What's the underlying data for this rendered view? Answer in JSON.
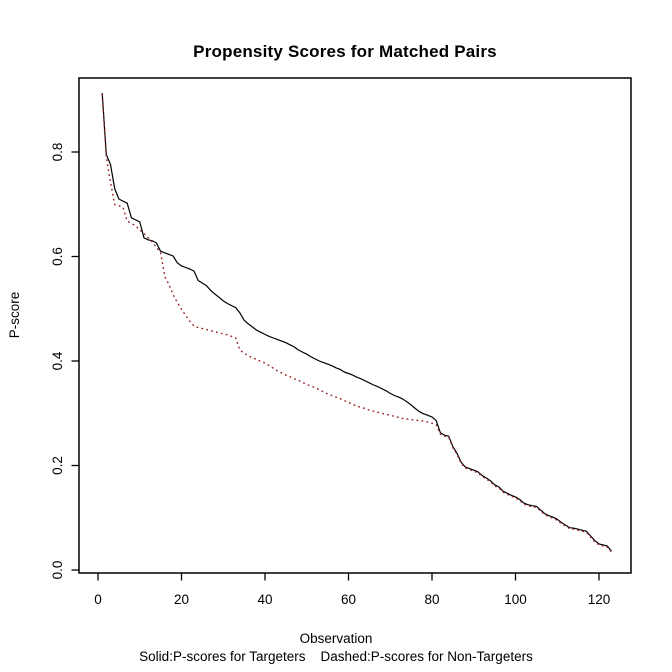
{
  "title": "Propensity Scores for Matched Pairs",
  "footnote": "Solid:P-scores for Targeters    Dashed:P-scores for Non-Targeters",
  "chart_data": {
    "type": "line",
    "title": "Propensity Scores for Matched Pairs",
    "xlabel": "Observation",
    "ylabel": "P-score",
    "legend_note": "Solid:P-scores for Targeters    Dashed:P-scores for Non-Targeters",
    "legend_position": "below",
    "grid": false,
    "xlim": [
      0,
      124
    ],
    "ylim": [
      0,
      0.92
    ],
    "x_ticks": [
      0,
      20,
      40,
      60,
      80,
      100,
      120
    ],
    "y_ticks": [
      0,
      0.2,
      0.4,
      0.6,
      0.8
    ],
    "y_tick_labels": [
      "0.0",
      "0.2",
      "0.4",
      "0.6",
      "0.8"
    ],
    "x": [
      1,
      2,
      3,
      4,
      5,
      6,
      7,
      8,
      9,
      10,
      11,
      12,
      13,
      14,
      15,
      16,
      17,
      18,
      19,
      20,
      21,
      22,
      23,
      24,
      25,
      26,
      27,
      28,
      29,
      30,
      31,
      32,
      33,
      34,
      35,
      36,
      37,
      38,
      39,
      40,
      41,
      42,
      43,
      44,
      45,
      46,
      47,
      48,
      49,
      50,
      51,
      52,
      53,
      54,
      55,
      56,
      57,
      58,
      59,
      60,
      61,
      62,
      63,
      64,
      65,
      66,
      67,
      68,
      69,
      70,
      71,
      72,
      73,
      74,
      75,
      76,
      77,
      78,
      79,
      80,
      81,
      82,
      83,
      84,
      85,
      86,
      87,
      88,
      89,
      90,
      91,
      92,
      93,
      94,
      95,
      96,
      97,
      98,
      99,
      100,
      101,
      102,
      103,
      104,
      105,
      106,
      107,
      108,
      109,
      110,
      111,
      112,
      113,
      114,
      115,
      116,
      117,
      118,
      119,
      120,
      121,
      122,
      123
    ],
    "series": [
      {
        "name": "P-scores for Targeters",
        "style": "solid",
        "color": "#000000",
        "values": [
          0.913,
          0.795,
          0.776,
          0.73,
          0.71,
          0.706,
          0.702,
          0.674,
          0.67,
          0.666,
          0.636,
          0.632,
          0.63,
          0.626,
          0.61,
          0.607,
          0.604,
          0.601,
          0.588,
          0.582,
          0.579,
          0.576,
          0.572,
          0.554,
          0.549,
          0.544,
          0.535,
          0.528,
          0.522,
          0.515,
          0.51,
          0.506,
          0.502,
          0.492,
          0.478,
          0.471,
          0.465,
          0.459,
          0.455,
          0.451,
          0.447,
          0.444,
          0.441,
          0.438,
          0.435,
          0.431,
          0.427,
          0.421,
          0.417,
          0.413,
          0.408,
          0.404,
          0.4,
          0.397,
          0.394,
          0.391,
          0.387,
          0.384,
          0.379,
          0.376,
          0.373,
          0.369,
          0.366,
          0.362,
          0.358,
          0.354,
          0.351,
          0.347,
          0.343,
          0.338,
          0.334,
          0.331,
          0.327,
          0.322,
          0.316,
          0.309,
          0.303,
          0.299,
          0.296,
          0.293,
          0.286,
          0.263,
          0.258,
          0.256,
          0.236,
          0.223,
          0.206,
          0.197,
          0.194,
          0.191,
          0.188,
          0.181,
          0.176,
          0.171,
          0.163,
          0.159,
          0.151,
          0.147,
          0.143,
          0.14,
          0.135,
          0.128,
          0.125,
          0.123,
          0.122,
          0.115,
          0.108,
          0.104,
          0.101,
          0.097,
          0.091,
          0.086,
          0.081,
          0.08,
          0.078,
          0.076,
          0.074,
          0.065,
          0.056,
          0.05,
          0.048,
          0.046,
          0.036
        ]
      },
      {
        "name": "P-scores for Non-Targeters",
        "style": "dashed",
        "color": "#992326",
        "values": [
          0.91,
          0.79,
          0.742,
          0.7,
          0.697,
          0.694,
          0.668,
          0.663,
          0.659,
          0.651,
          0.644,
          0.636,
          0.628,
          0.618,
          0.607,
          0.562,
          0.546,
          0.527,
          0.512,
          0.499,
          0.487,
          0.476,
          0.467,
          0.464,
          0.462,
          0.46,
          0.458,
          0.456,
          0.454,
          0.452,
          0.45,
          0.447,
          0.444,
          0.421,
          0.415,
          0.41,
          0.406,
          0.403,
          0.399,
          0.396,
          0.391,
          0.386,
          0.381,
          0.377,
          0.373,
          0.37,
          0.366,
          0.363,
          0.359,
          0.355,
          0.352,
          0.349,
          0.345,
          0.341,
          0.337,
          0.334,
          0.331,
          0.328,
          0.324,
          0.321,
          0.317,
          0.314,
          0.311,
          0.309,
          0.306,
          0.304,
          0.302,
          0.3,
          0.298,
          0.296,
          0.294,
          0.292,
          0.29,
          0.289,
          0.288,
          0.287,
          0.286,
          0.285,
          0.283,
          0.281,
          0.278,
          0.26,
          0.256,
          0.254,
          0.234,
          0.221,
          0.204,
          0.195,
          0.192,
          0.189,
          0.186,
          0.179,
          0.174,
          0.169,
          0.161,
          0.157,
          0.149,
          0.145,
          0.141,
          0.138,
          0.133,
          0.126,
          0.123,
          0.121,
          0.12,
          0.113,
          0.106,
          0.102,
          0.099,
          0.095,
          0.089,
          0.084,
          0.079,
          0.078,
          0.076,
          0.074,
          0.072,
          0.063,
          0.054,
          0.048,
          0.046,
          0.044,
          0.034
        ]
      }
    ]
  }
}
